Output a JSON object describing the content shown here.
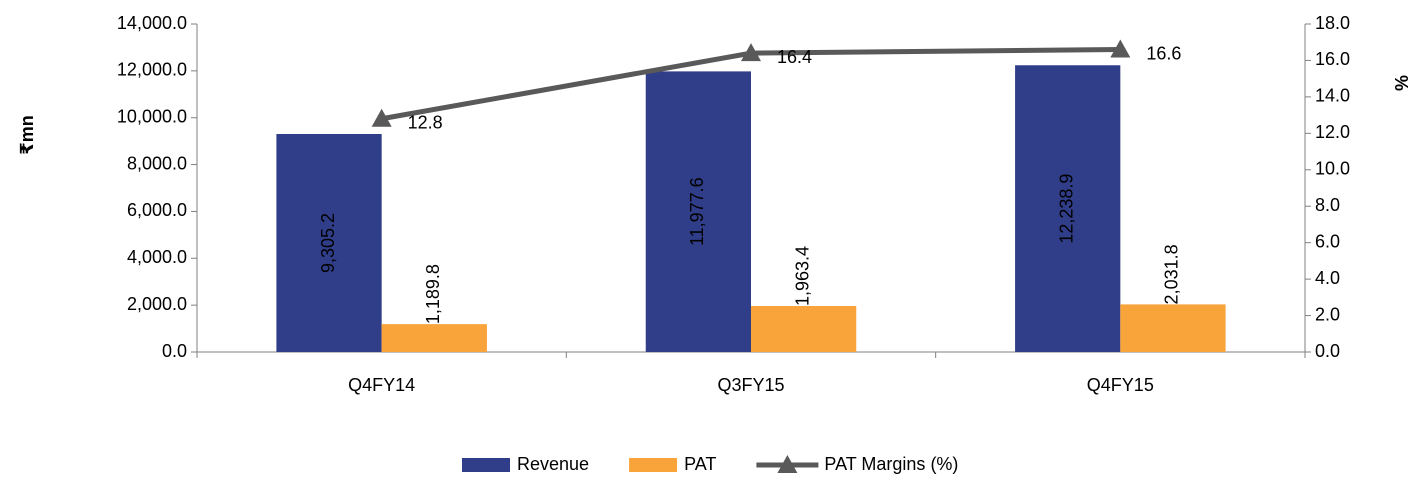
{
  "chart_data": {
    "type": "bar",
    "categories": [
      "Q4FY14",
      "Q3FY15",
      "Q4FY15"
    ],
    "y_label": "₹mn",
    "y2_label": "%",
    "ylim": [
      0,
      14000
    ],
    "yticks": [
      {
        "value": 0,
        "label": "0.0"
      },
      {
        "value": 2000,
        "label": "2,000.0"
      },
      {
        "value": 4000,
        "label": "4,000.0"
      },
      {
        "value": 6000,
        "label": "6,000.0"
      },
      {
        "value": 8000,
        "label": "8,000.0"
      },
      {
        "value": 10000,
        "label": "10,000.0"
      },
      {
        "value": 12000,
        "label": "12,000.0"
      },
      {
        "value": 14000,
        "label": "14,000.0"
      }
    ],
    "y2lim": [
      0,
      18
    ],
    "y2ticks": [
      {
        "value": 0,
        "label": "0.0"
      },
      {
        "value": 2,
        "label": "2.0"
      },
      {
        "value": 4,
        "label": "4.0"
      },
      {
        "value": 6,
        "label": "6.0"
      },
      {
        "value": 8,
        "label": "8.0"
      },
      {
        "value": 10,
        "label": "10.0"
      },
      {
        "value": 12,
        "label": "12.0"
      },
      {
        "value": 14,
        "label": "14.0"
      },
      {
        "value": 16,
        "label": "16.0"
      },
      {
        "value": 18,
        "label": "18.0"
      }
    ],
    "legend": "bottom",
    "series": [
      {
        "name": "Revenue",
        "type": "bar",
        "color": "#303e8a",
        "values": [
          9305.2,
          11977.6,
          12238.9
        ],
        "value_labels": [
          "9,305.2",
          "11,977.6",
          "12,238.9"
        ]
      },
      {
        "name": "PAT",
        "type": "bar",
        "color": "#f9a43a",
        "values": [
          1189.8,
          1963.4,
          2031.8
        ],
        "value_labels": [
          "1,189.8",
          "1,963.4",
          "2,031.8"
        ]
      },
      {
        "name": "PAT Margins (%)",
        "type": "line",
        "axis": "y2",
        "marker": "triangle",
        "color": "#595959",
        "values": [
          12.8,
          16.4,
          16.6
        ]
      }
    ]
  }
}
